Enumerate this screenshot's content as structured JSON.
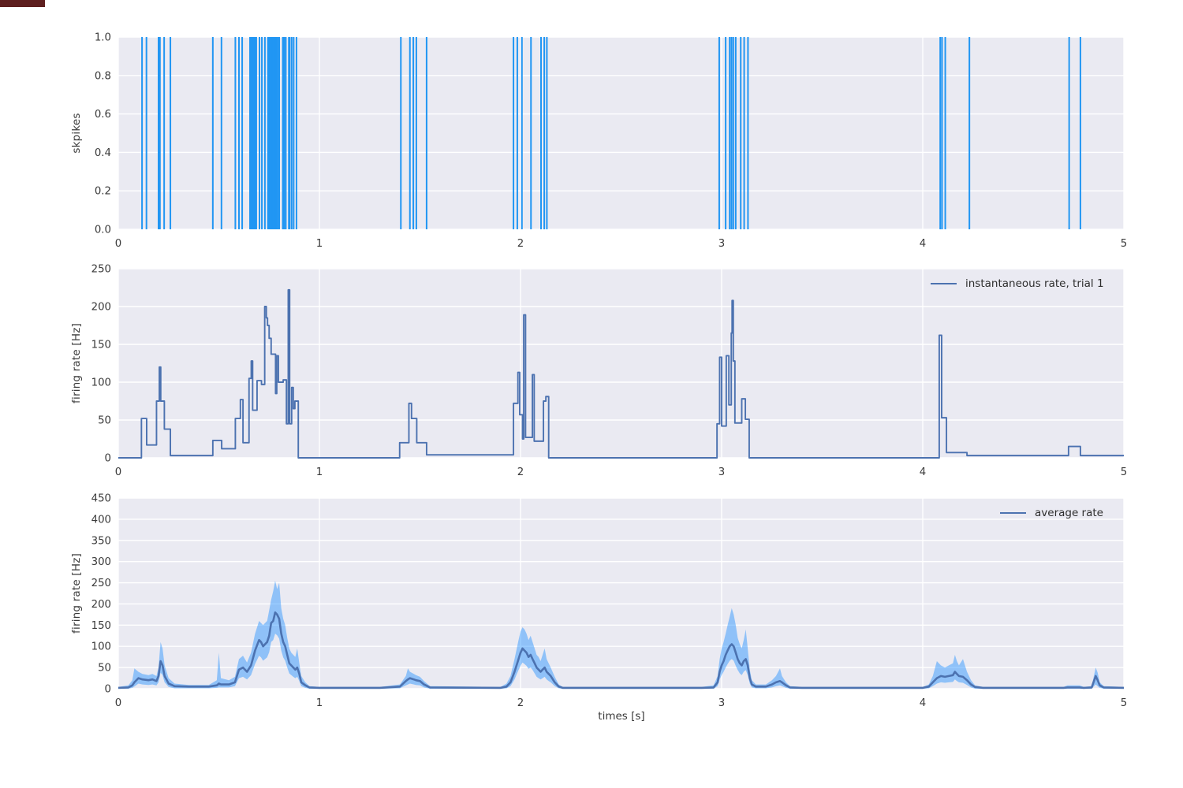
{
  "figure": {
    "background": "#ffffff",
    "panel_background": "#eaeaf2",
    "grid_color": "#ffffff",
    "text_color": "#3a3a3a"
  },
  "colors": {
    "spike": "#2196f3",
    "line": "#4c72b0",
    "band": "rgba(33,144,255,0.45)"
  },
  "chart_data": [
    {
      "type": "scatter",
      "style": "event-raster-vertical-lines",
      "ylabel": "skpikes",
      "xlim": [
        0,
        5
      ],
      "ylim": [
        0,
        1
      ],
      "xticks": [
        "0",
        "1",
        "2",
        "3",
        "4",
        "5"
      ],
      "yticks": [
        "0.0",
        "0.2",
        "0.4",
        "0.6",
        "0.8",
        "1.0"
      ],
      "grid": true,
      "spike_times": [
        0.118,
        0.14,
        0.2,
        0.207,
        0.228,
        0.259,
        0.47,
        0.513,
        0.582,
        0.6,
        0.616,
        0.655,
        0.662,
        0.668,
        0.674,
        0.68,
        0.686,
        0.702,
        0.714,
        0.729,
        0.744,
        0.75,
        0.756,
        0.761,
        0.766,
        0.771,
        0.776,
        0.781,
        0.786,
        0.792,
        0.8,
        0.818,
        0.825,
        0.833,
        0.848,
        0.852,
        0.862,
        0.872,
        0.886,
        1.405,
        1.45,
        1.467,
        1.482,
        1.533,
        1.965,
        1.984,
        2.007,
        2.052,
        2.102,
        2.118,
        2.131,
        2.988,
        3.02,
        3.04,
        3.049,
        3.058,
        3.07,
        3.095,
        3.112,
        3.131,
        4.087,
        4.096,
        4.112,
        4.232,
        4.728,
        4.784
      ]
    },
    {
      "type": "line",
      "style": "step",
      "legend": "instantaneous rate, trial 1",
      "legend_position": "upper right",
      "ylabel": "firing rate [Hz]",
      "xlim": [
        0,
        5
      ],
      "ylim": [
        0,
        250
      ],
      "xticks": [
        "0",
        "1",
        "2",
        "3",
        "4",
        "5"
      ],
      "yticks": [
        "0",
        "50",
        "100",
        "150",
        "200",
        "250"
      ],
      "grid": true,
      "steps": [
        [
          0.0,
          0
        ],
        [
          0.115,
          52
        ],
        [
          0.141,
          17
        ],
        [
          0.19,
          75
        ],
        [
          0.204,
          120
        ],
        [
          0.211,
          75
        ],
        [
          0.229,
          38
        ],
        [
          0.259,
          3
        ],
        [
          0.47,
          23
        ],
        [
          0.514,
          12
        ],
        [
          0.582,
          52
        ],
        [
          0.607,
          77
        ],
        [
          0.62,
          20
        ],
        [
          0.65,
          105
        ],
        [
          0.661,
          128
        ],
        [
          0.668,
          63
        ],
        [
          0.69,
          102
        ],
        [
          0.712,
          97
        ],
        [
          0.728,
          200
        ],
        [
          0.736,
          185
        ],
        [
          0.742,
          175
        ],
        [
          0.75,
          158
        ],
        [
          0.76,
          137
        ],
        [
          0.782,
          85
        ],
        [
          0.788,
          135
        ],
        [
          0.796,
          100
        ],
        [
          0.82,
          103
        ],
        [
          0.836,
          45
        ],
        [
          0.845,
          222
        ],
        [
          0.852,
          45
        ],
        [
          0.862,
          93
        ],
        [
          0.87,
          65
        ],
        [
          0.878,
          75
        ],
        [
          0.895,
          0
        ],
        [
          1.399,
          20
        ],
        [
          1.445,
          72
        ],
        [
          1.458,
          52
        ],
        [
          1.484,
          20
        ],
        [
          1.533,
          4
        ],
        [
          1.965,
          72
        ],
        [
          1.987,
          113
        ],
        [
          1.996,
          57
        ],
        [
          2.01,
          25
        ],
        [
          2.016,
          189
        ],
        [
          2.025,
          27
        ],
        [
          2.059,
          110
        ],
        [
          2.068,
          22
        ],
        [
          2.114,
          75
        ],
        [
          2.126,
          81
        ],
        [
          2.14,
          0
        ],
        [
          2.977,
          45
        ],
        [
          2.99,
          133
        ],
        [
          3.0,
          42
        ],
        [
          3.023,
          135
        ],
        [
          3.036,
          70
        ],
        [
          3.048,
          165
        ],
        [
          3.052,
          208
        ],
        [
          3.058,
          128
        ],
        [
          3.066,
          46
        ],
        [
          3.1,
          78
        ],
        [
          3.118,
          51
        ],
        [
          3.137,
          0
        ],
        [
          4.082,
          162
        ],
        [
          4.094,
          53
        ],
        [
          4.118,
          7
        ],
        [
          4.22,
          3
        ],
        [
          4.725,
          15
        ],
        [
          4.784,
          3
        ],
        [
          5.0,
          3
        ]
      ]
    },
    {
      "type": "area",
      "style": "mean-line-with-band",
      "legend": "average rate",
      "legend_position": "upper right",
      "ylabel": "firing rate [Hz]",
      "xlabel": "times [s]",
      "xlim": [
        0,
        5
      ],
      "ylim": [
        0,
        450
      ],
      "xticks": [
        "0",
        "1",
        "2",
        "3",
        "4",
        "5"
      ],
      "yticks": [
        "0",
        "50",
        "100",
        "150",
        "200",
        "250",
        "300",
        "350",
        "400",
        "450"
      ],
      "grid": true,
      "points_format": [
        "t",
        "mean",
        "band_low",
        "band_high"
      ],
      "points": [
        [
          0.0,
          2,
          0,
          4
        ],
        [
          0.05,
          3,
          0,
          8
        ],
        [
          0.07,
          8,
          2,
          20
        ],
        [
          0.08,
          15,
          5,
          48
        ],
        [
          0.1,
          25,
          12,
          40
        ],
        [
          0.12,
          22,
          10,
          35
        ],
        [
          0.15,
          20,
          9,
          32
        ],
        [
          0.17,
          22,
          10,
          35
        ],
        [
          0.19,
          18,
          8,
          30
        ],
        [
          0.2,
          30,
          15,
          50
        ],
        [
          0.21,
          65,
          38,
          110
        ],
        [
          0.22,
          55,
          32,
          95
        ],
        [
          0.23,
          30,
          15,
          55
        ],
        [
          0.25,
          12,
          4,
          25
        ],
        [
          0.28,
          6,
          1,
          12
        ],
        [
          0.35,
          5,
          1,
          9
        ],
        [
          0.45,
          5,
          1,
          9
        ],
        [
          0.49,
          8,
          2,
          20
        ],
        [
          0.5,
          12,
          3,
          85
        ],
        [
          0.51,
          10,
          3,
          25
        ],
        [
          0.55,
          10,
          3,
          20
        ],
        [
          0.58,
          15,
          6,
          28
        ],
        [
          0.6,
          45,
          25,
          70
        ],
        [
          0.62,
          50,
          28,
          78
        ],
        [
          0.64,
          40,
          22,
          62
        ],
        [
          0.66,
          55,
          32,
          85
        ],
        [
          0.68,
          90,
          58,
          130
        ],
        [
          0.7,
          115,
          78,
          160
        ],
        [
          0.71,
          110,
          74,
          155
        ],
        [
          0.72,
          100,
          66,
          150
        ],
        [
          0.73,
          105,
          70,
          155
        ],
        [
          0.74,
          110,
          74,
          160
        ],
        [
          0.75,
          125,
          86,
          185
        ],
        [
          0.76,
          155,
          110,
          210
        ],
        [
          0.77,
          160,
          115,
          230
        ],
        [
          0.78,
          180,
          130,
          255
        ],
        [
          0.79,
          175,
          126,
          235
        ],
        [
          0.8,
          165,
          118,
          250
        ],
        [
          0.81,
          130,
          90,
          190
        ],
        [
          0.82,
          110,
          74,
          165
        ],
        [
          0.83,
          100,
          66,
          150
        ],
        [
          0.84,
          80,
          50,
          120
        ],
        [
          0.85,
          60,
          36,
          95
        ],
        [
          0.86,
          55,
          32,
          85
        ],
        [
          0.87,
          50,
          28,
          80
        ],
        [
          0.88,
          45,
          25,
          75
        ],
        [
          0.89,
          50,
          28,
          95
        ],
        [
          0.9,
          35,
          18,
          60
        ],
        [
          0.91,
          15,
          6,
          30
        ],
        [
          0.93,
          8,
          2,
          15
        ],
        [
          0.95,
          3,
          0,
          6
        ],
        [
          1.0,
          2,
          0,
          4
        ],
        [
          1.3,
          2,
          0,
          4
        ],
        [
          1.4,
          5,
          1,
          10
        ],
        [
          1.43,
          18,
          8,
          30
        ],
        [
          1.44,
          22,
          10,
          48
        ],
        [
          1.45,
          25,
          12,
          40
        ],
        [
          1.47,
          22,
          10,
          35
        ],
        [
          1.48,
          20,
          9,
          32
        ],
        [
          1.5,
          18,
          8,
          28
        ],
        [
          1.52,
          10,
          3,
          18
        ],
        [
          1.55,
          3,
          0,
          6
        ],
        [
          1.9,
          2,
          0,
          4
        ],
        [
          1.93,
          5,
          1,
          12
        ],
        [
          1.95,
          15,
          6,
          30
        ],
        [
          1.97,
          40,
          22,
          70
        ],
        [
          1.99,
          70,
          44,
          115
        ],
        [
          2.0,
          85,
          54,
          135
        ],
        [
          2.01,
          95,
          62,
          145
        ],
        [
          2.02,
          90,
          58,
          140
        ],
        [
          2.03,
          85,
          54,
          130
        ],
        [
          2.04,
          75,
          47,
          115
        ],
        [
          2.05,
          80,
          50,
          125
        ],
        [
          2.06,
          70,
          44,
          110
        ],
        [
          2.07,
          60,
          36,
          95
        ],
        [
          2.08,
          50,
          28,
          80
        ],
        [
          2.09,
          45,
          25,
          75
        ],
        [
          2.1,
          40,
          22,
          65
        ],
        [
          2.11,
          45,
          25,
          80
        ],
        [
          2.12,
          50,
          28,
          95
        ],
        [
          2.13,
          40,
          22,
          70
        ],
        [
          2.14,
          35,
          18,
          60
        ],
        [
          2.15,
          30,
          15,
          50
        ],
        [
          2.17,
          15,
          6,
          28
        ],
        [
          2.19,
          5,
          1,
          10
        ],
        [
          2.21,
          2,
          0,
          4
        ],
        [
          2.9,
          2,
          0,
          4
        ],
        [
          2.96,
          3,
          0,
          8
        ],
        [
          2.98,
          15,
          6,
          30
        ],
        [
          2.99,
          40,
          22,
          70
        ],
        [
          3.0,
          55,
          32,
          95
        ],
        [
          3.01,
          65,
          40,
          110
        ],
        [
          3.02,
          80,
          50,
          130
        ],
        [
          3.03,
          90,
          58,
          150
        ],
        [
          3.04,
          100,
          66,
          170
        ],
        [
          3.05,
          105,
          70,
          190
        ],
        [
          3.06,
          100,
          66,
          175
        ],
        [
          3.07,
          85,
          54,
          150
        ],
        [
          3.08,
          70,
          44,
          120
        ],
        [
          3.09,
          60,
          36,
          105
        ],
        [
          3.1,
          55,
          32,
          95
        ],
        [
          3.11,
          65,
          40,
          115
        ],
        [
          3.12,
          70,
          44,
          140
        ],
        [
          3.13,
          55,
          32,
          95
        ],
        [
          3.14,
          25,
          12,
          45
        ],
        [
          3.15,
          10,
          3,
          20
        ],
        [
          3.17,
          5,
          1,
          10
        ],
        [
          3.22,
          5,
          1,
          10
        ],
        [
          3.25,
          10,
          3,
          20
        ],
        [
          3.27,
          15,
          6,
          30
        ],
        [
          3.29,
          18,
          8,
          48
        ],
        [
          3.3,
          15,
          6,
          30
        ],
        [
          3.32,
          8,
          2,
          15
        ],
        [
          3.34,
          3,
          0,
          6
        ],
        [
          3.4,
          2,
          0,
          4
        ],
        [
          4.0,
          2,
          0,
          4
        ],
        [
          4.03,
          5,
          1,
          10
        ],
        [
          4.05,
          15,
          6,
          30
        ],
        [
          4.07,
          25,
          12,
          65
        ],
        [
          4.09,
          30,
          15,
          55
        ],
        [
          4.11,
          28,
          14,
          50
        ],
        [
          4.13,
          30,
          15,
          55
        ],
        [
          4.15,
          32,
          16,
          60
        ],
        [
          4.16,
          40,
          22,
          80
        ],
        [
          4.17,
          35,
          18,
          65
        ],
        [
          4.18,
          30,
          15,
          55
        ],
        [
          4.2,
          28,
          14,
          70
        ],
        [
          4.22,
          20,
          9,
          40
        ],
        [
          4.24,
          10,
          3,
          20
        ],
        [
          4.26,
          4,
          0,
          8
        ],
        [
          4.3,
          2,
          0,
          4
        ],
        [
          4.7,
          2,
          0,
          4
        ],
        [
          4.72,
          3,
          0,
          8
        ],
        [
          4.75,
          3,
          0,
          8
        ],
        [
          4.78,
          3,
          0,
          8
        ],
        [
          4.8,
          2,
          0,
          4
        ],
        [
          4.84,
          3,
          0,
          6
        ],
        [
          4.86,
          30,
          10,
          50
        ],
        [
          4.87,
          20,
          6,
          38
        ],
        [
          4.88,
          8,
          2,
          15
        ],
        [
          4.9,
          3,
          0,
          6
        ],
        [
          5.0,
          2,
          0,
          4
        ]
      ]
    }
  ]
}
